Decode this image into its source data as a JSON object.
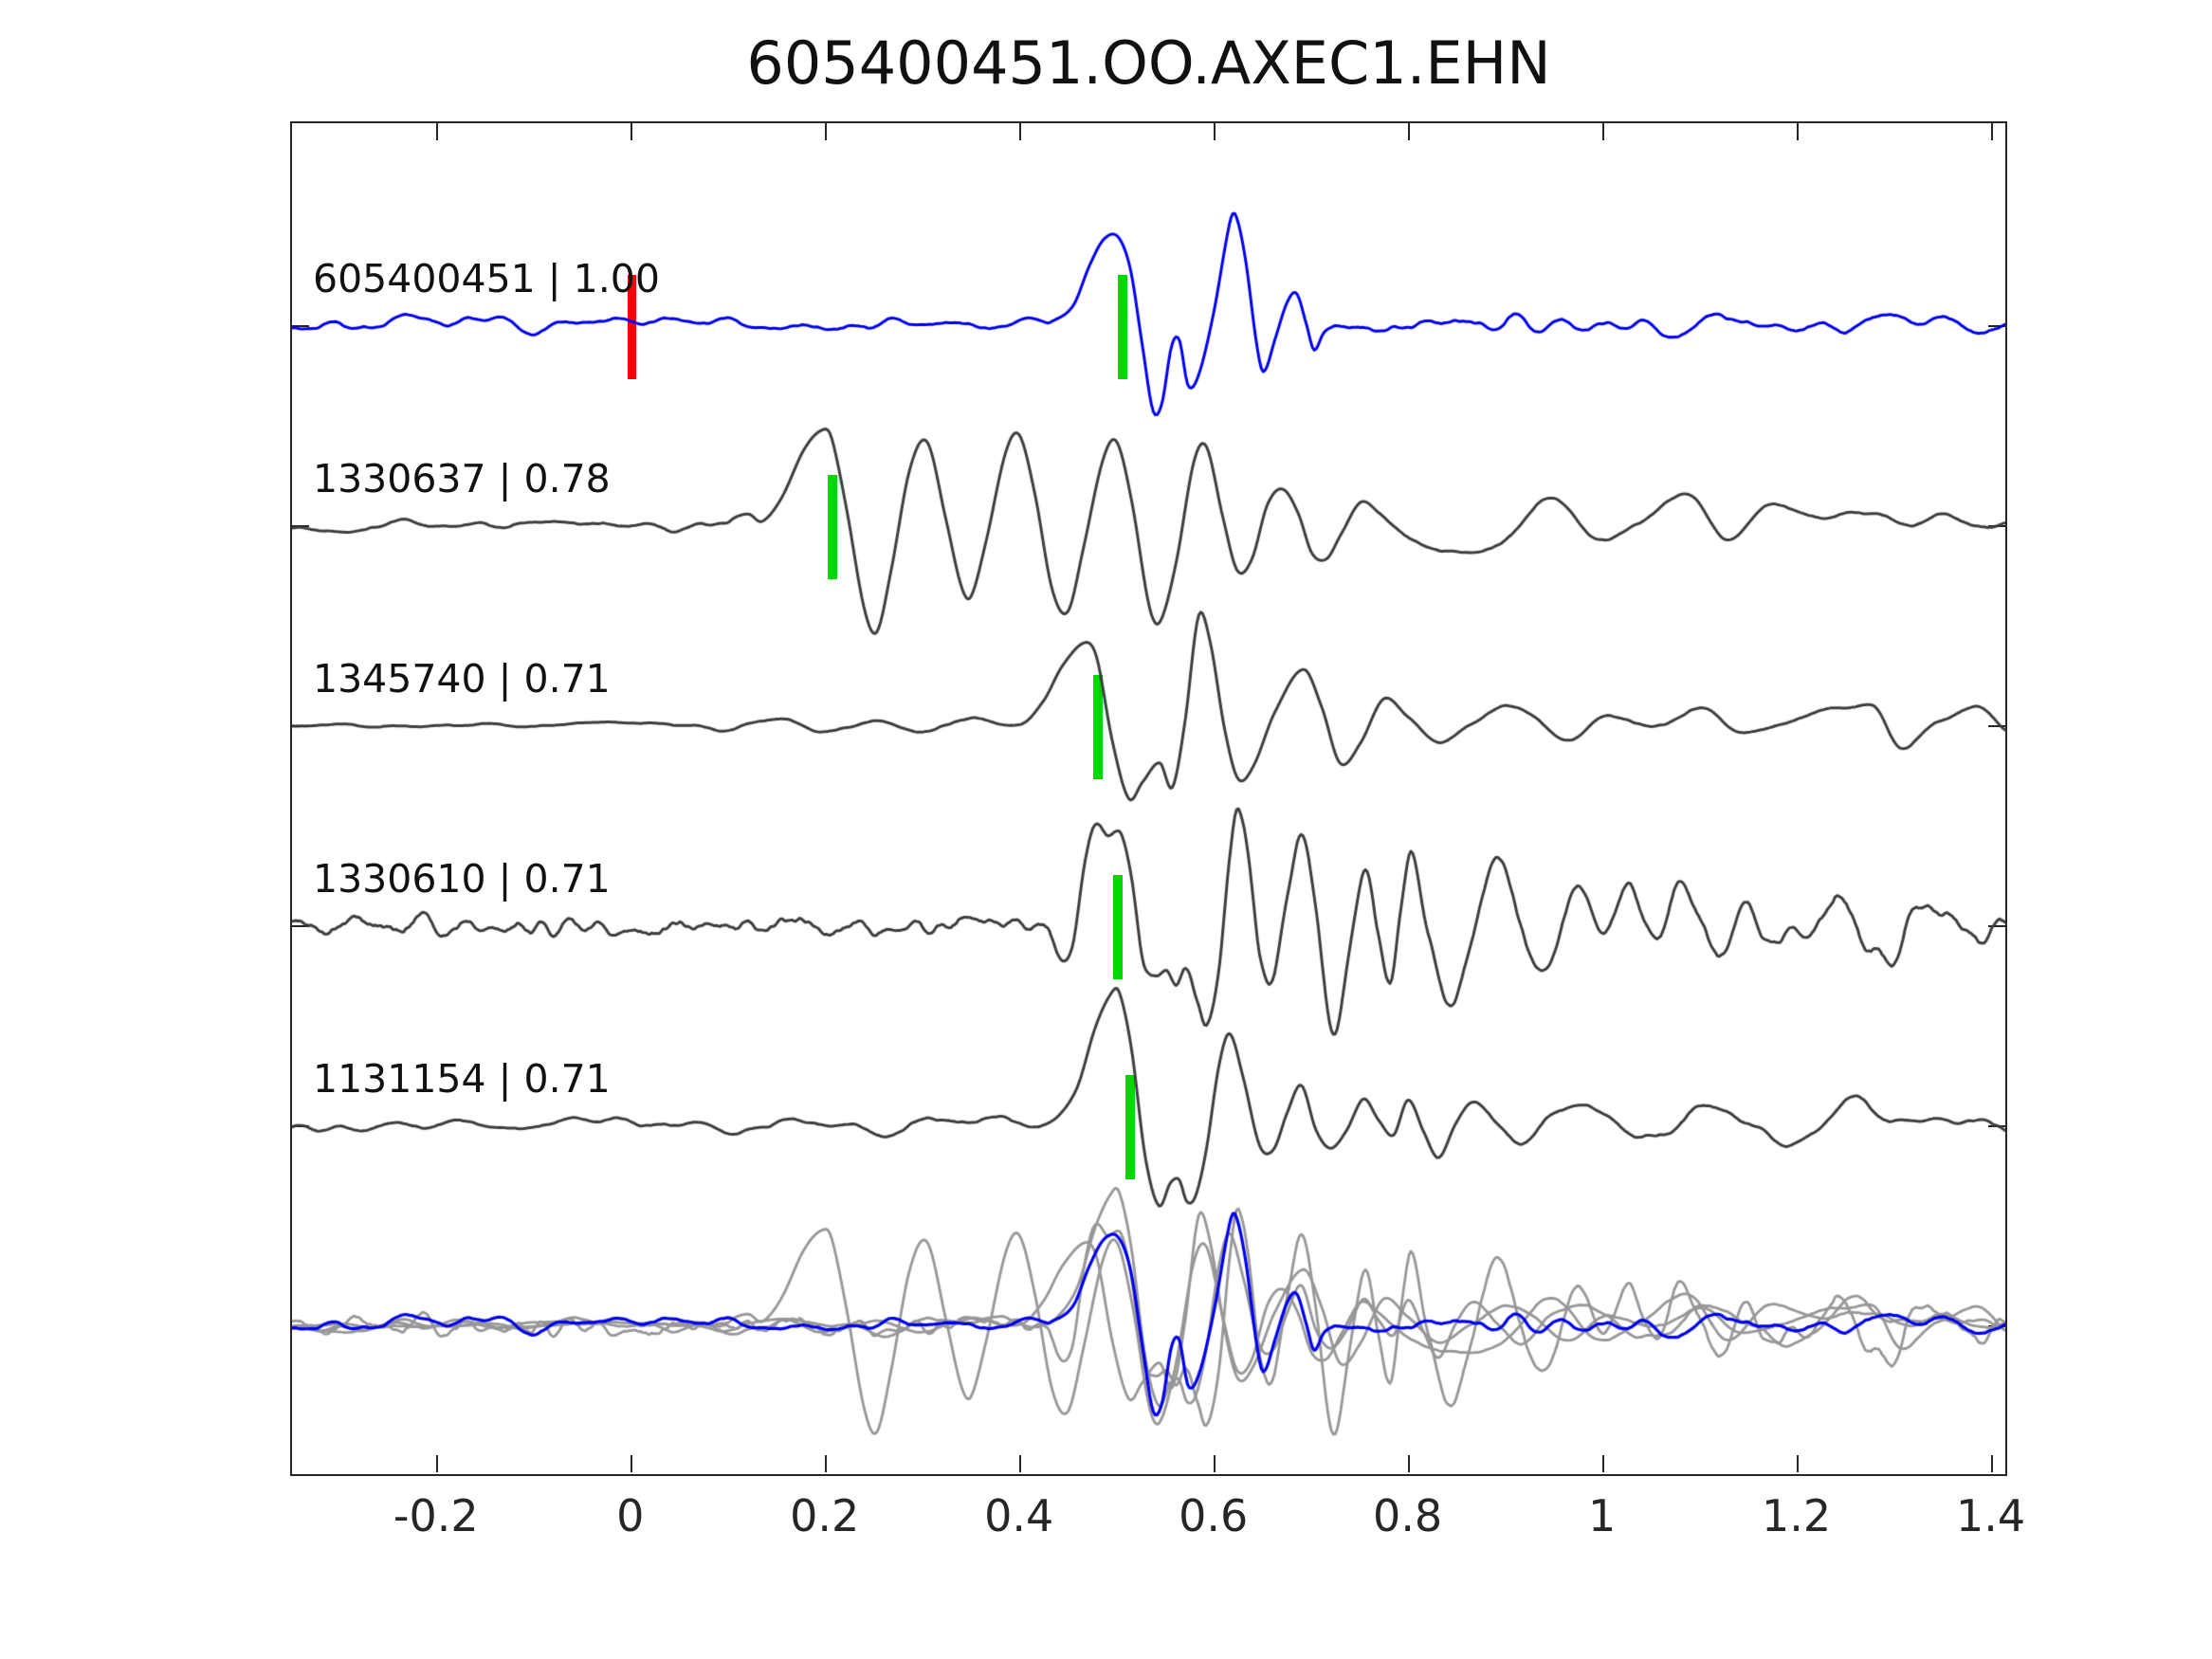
{
  "chart_data": {
    "type": "line",
    "title": "605400451.OO.AXEC1.EHN",
    "xlabel": "",
    "ylabel": "",
    "xlim": [
      -0.35,
      1.417
    ],
    "x_ticks": [
      -0.2,
      0,
      0.2,
      0.4,
      0.6,
      0.8,
      1,
      1.2,
      1.4
    ],
    "x_tick_labels": [
      "-0.2",
      "0",
      "0.2",
      "0.4",
      "0.6",
      "0.8",
      "1",
      "1.2",
      "1.4"
    ],
    "grid": false,
    "legend": "none",
    "colors": {
      "template_trace": "#0000ee",
      "detection_trace": "#3d3d3d",
      "overlay_gray": "#979797",
      "template_pick": "#ff0000",
      "detection_pick": "#00d800",
      "axis": "#262626",
      "text": "#111111"
    },
    "unit_spacing_units": 1.0,
    "traces": [
      {
        "id": "605400451",
        "correlation": 1.0,
        "label": "605400451 | 1.00",
        "role": "template",
        "color": "#0000ee",
        "offset_units": 5,
        "picks": [
          {
            "type": "template-origin",
            "time": 0.0,
            "color": "#ff0000",
            "width": 9
          },
          {
            "type": "detection-pick",
            "time": 0.505,
            "color": "#00d800",
            "width": 10
          }
        ],
        "noise": {
          "seed": 7,
          "smooth": 5,
          "envelope": [
            [
              -0.35,
              0.055
            ],
            [
              0.4,
              0.06
            ],
            [
              0.43,
              0.02
            ],
            [
              0.72,
              0.02
            ],
            [
              0.76,
              0.08
            ],
            [
              1.417,
              0.075
            ]
          ]
        },
        "event": [
          [
            0.43,
            0
          ],
          [
            0.455,
            0.1
          ],
          [
            0.472,
            0.3
          ],
          [
            0.488,
            0.43
          ],
          [
            0.503,
            0.44
          ],
          [
            0.515,
            0.28
          ],
          [
            0.527,
            -0.1
          ],
          [
            0.538,
            -0.42
          ],
          [
            0.547,
            -0.38
          ],
          [
            0.557,
            -0.1
          ],
          [
            0.565,
            -0.08
          ],
          [
            0.574,
            -0.32
          ],
          [
            0.584,
            -0.28
          ],
          [
            0.6,
            0.05
          ],
          [
            0.617,
            0.52
          ],
          [
            0.623,
            0.56
          ],
          [
            0.633,
            0.33
          ],
          [
            0.645,
            -0.12
          ],
          [
            0.652,
            -0.25
          ],
          [
            0.664,
            -0.08
          ],
          [
            0.676,
            0.1
          ],
          [
            0.686,
            0.15
          ],
          [
            0.696,
            0
          ],
          [
            0.704,
            -0.13
          ],
          [
            0.714,
            -0.04
          ],
          [
            0.725,
            0
          ]
        ]
      },
      {
        "id": "1330637",
        "correlation": 0.78,
        "label": "1330637 | 0.78",
        "role": "detection",
        "color": "#3d3d3d",
        "offset_units": 4,
        "picks": [
          {
            "type": "detection-pick",
            "time": 0.206,
            "color": "#00d800",
            "width": 10
          }
        ],
        "noise": {
          "seed": 13,
          "smooth": 6,
          "envelope": [
            [
              -0.35,
              0.035
            ],
            [
              0.1,
              0.045
            ],
            [
              0.14,
              0.01
            ],
            [
              0.76,
              0.01
            ],
            [
              0.8,
              0.045
            ],
            [
              1.417,
              0.045
            ]
          ]
        },
        "event": [
          [
            0.1,
            0
          ],
          [
            0.12,
            0.05
          ],
          [
            0.135,
            0.02
          ],
          [
            0.155,
            0.14
          ],
          [
            0.178,
            0.38
          ],
          [
            0.196,
            0.48
          ],
          [
            0.206,
            0.45
          ],
          [
            0.222,
            0.08
          ],
          [
            0.24,
            -0.42
          ],
          [
            0.253,
            -0.54
          ],
          [
            0.268,
            -0.22
          ],
          [
            0.287,
            0.28
          ],
          [
            0.305,
            0.42
          ],
          [
            0.324,
            0.04
          ],
          [
            0.34,
            -0.3
          ],
          [
            0.35,
            -0.36
          ],
          [
            0.366,
            -0.08
          ],
          [
            0.386,
            0.36
          ],
          [
            0.4,
            0.45
          ],
          [
            0.416,
            0.16
          ],
          [
            0.434,
            -0.32
          ],
          [
            0.45,
            -0.43
          ],
          [
            0.466,
            -0.12
          ],
          [
            0.486,
            0.32
          ],
          [
            0.5,
            0.42
          ],
          [
            0.516,
            0.12
          ],
          [
            0.534,
            -0.4
          ],
          [
            0.545,
            -0.48
          ],
          [
            0.562,
            -0.18
          ],
          [
            0.58,
            0.32
          ],
          [
            0.593,
            0.4
          ],
          [
            0.61,
            0.04
          ],
          [
            0.625,
            -0.23
          ],
          [
            0.64,
            -0.17
          ],
          [
            0.656,
            0.1
          ],
          [
            0.672,
            0.18
          ],
          [
            0.688,
            0.06
          ],
          [
            0.702,
            -0.14
          ],
          [
            0.717,
            -0.17
          ],
          [
            0.732,
            -0.04
          ],
          [
            0.752,
            0.12
          ],
          [
            0.772,
            0.06
          ],
          [
            0.8,
            -0.08
          ],
          [
            0.82,
            -0.12
          ],
          [
            0.885,
            -0.14
          ],
          [
            0.92,
            0
          ],
          [
            0.955,
            0.12
          ],
          [
            0.99,
            -0.05
          ],
          [
            1.04,
            0.02
          ],
          [
            1.09,
            0.13
          ],
          [
            1.13,
            -0.07
          ],
          [
            1.17,
            0.1
          ],
          [
            1.22,
            0.04
          ],
          [
            1.27,
            0.07
          ],
          [
            1.32,
            0.01
          ],
          [
            1.36,
            0.06
          ],
          [
            1.4,
            -0.02
          ],
          [
            1.417,
            -0.01
          ]
        ]
      },
      {
        "id": "1345740",
        "correlation": 0.71,
        "label": "1345740 | 0.71",
        "role": "detection",
        "color": "#3d3d3d",
        "offset_units": 3,
        "picks": [
          {
            "type": "detection-pick",
            "time": 0.479,
            "color": "#00d800",
            "width": 10
          }
        ],
        "noise": {
          "seed": 21,
          "smooth": 6,
          "envelope": [
            [
              -0.35,
              0.022
            ],
            [
              0.08,
              0.03
            ],
            [
              0.4,
              0.035
            ],
            [
              0.425,
              0.008
            ],
            [
              0.8,
              0.008
            ],
            [
              0.84,
              0.045
            ],
            [
              1.417,
              0.045
            ]
          ]
        },
        "event": [
          [
            0.1,
            0
          ],
          [
            0.15,
            0.02
          ],
          [
            0.2,
            -0.02
          ],
          [
            0.25,
            0.03
          ],
          [
            0.3,
            -0.02
          ],
          [
            0.35,
            0.03
          ],
          [
            0.4,
            0
          ],
          [
            0.425,
            0.12
          ],
          [
            0.445,
            0.3
          ],
          [
            0.468,
            0.42
          ],
          [
            0.48,
            0.34
          ],
          [
            0.496,
            -0.08
          ],
          [
            0.513,
            -0.37
          ],
          [
            0.527,
            -0.29
          ],
          [
            0.545,
            -0.19
          ],
          [
            0.558,
            -0.31
          ],
          [
            0.571,
            0.02
          ],
          [
            0.585,
            0.55
          ],
          [
            0.597,
            0.42
          ],
          [
            0.612,
            -0.02
          ],
          [
            0.626,
            -0.27
          ],
          [
            0.642,
            -0.2
          ],
          [
            0.663,
            0.06
          ],
          [
            0.693,
            0.28
          ],
          [
            0.712,
            0.09
          ],
          [
            0.731,
            -0.19
          ],
          [
            0.752,
            -0.09
          ],
          [
            0.776,
            0.13
          ],
          [
            0.8,
            0.04
          ],
          [
            0.83,
            -0.08
          ],
          [
            0.862,
            0.02
          ],
          [
            0.9,
            0.1
          ],
          [
            0.935,
            0.01
          ],
          [
            0.97,
            -0.06
          ],
          [
            1.005,
            0.04
          ],
          [
            1.05,
            -0.01
          ],
          [
            1.1,
            0.08
          ],
          [
            1.15,
            -0.05
          ],
          [
            1.21,
            0.03
          ],
          [
            1.28,
            0.09
          ],
          [
            1.31,
            -0.11
          ],
          [
            1.35,
            0.02
          ],
          [
            1.39,
            0.09
          ],
          [
            1.417,
            -0.04
          ]
        ]
      },
      {
        "id": "1330610",
        "correlation": 0.71,
        "label": "1330610 | 0.71",
        "role": "detection",
        "color": "#3d3d3d",
        "offset_units": 2,
        "picks": [
          {
            "type": "detection-pick",
            "time": 0.5,
            "color": "#00d800",
            "width": 10
          }
        ],
        "noise": {
          "seed": 5,
          "smooth": 3,
          "envelope": [
            [
              -0.35,
              0.11
            ],
            [
              0.41,
              0.11
            ],
            [
              0.44,
              0.07
            ],
            [
              1.0,
              0.09
            ],
            [
              1.05,
              0.13
            ],
            [
              1.417,
              0.13
            ]
          ]
        },
        "event": [
          [
            0.43,
            0
          ],
          [
            0.443,
            -0.16
          ],
          [
            0.455,
            -0.04
          ],
          [
            0.466,
            0.26
          ],
          [
            0.478,
            0.46
          ],
          [
            0.49,
            0.47
          ],
          [
            0.504,
            0.48
          ],
          [
            0.516,
            0.22
          ],
          [
            0.528,
            -0.2
          ],
          [
            0.54,
            -0.28
          ],
          [
            0.552,
            -0.23
          ],
          [
            0.562,
            -0.3
          ],
          [
            0.572,
            -0.22
          ],
          [
            0.584,
            -0.38
          ],
          [
            0.594,
            -0.52
          ],
          [
            0.606,
            -0.28
          ],
          [
            0.617,
            0.28
          ],
          [
            0.625,
            0.56
          ],
          [
            0.636,
            0.38
          ],
          [
            0.648,
            -0.12
          ],
          [
            0.661,
            -0.26
          ],
          [
            0.676,
            0.16
          ],
          [
            0.691,
            0.49
          ],
          [
            0.706,
            0.08
          ],
          [
            0.719,
            -0.44
          ],
          [
            0.727,
            -0.51
          ],
          [
            0.741,
            -0.13
          ],
          [
            0.757,
            0.31
          ],
          [
            0.77,
            -0.02
          ],
          [
            0.783,
            -0.29
          ],
          [
            0.794,
            0.08
          ],
          [
            0.805,
            0.36
          ],
          [
            0.822,
            -0.02
          ],
          [
            0.843,
            -0.43
          ],
          [
            0.861,
            -0.18
          ],
          [
            0.878,
            0.2
          ],
          [
            0.898,
            0.37
          ],
          [
            0.915,
            0.03
          ],
          [
            0.931,
            -0.2
          ],
          [
            0.948,
            -0.16
          ],
          [
            0.966,
            0.1
          ],
          [
            0.985,
            0.16
          ],
          [
            1.005,
            -0.05
          ],
          [
            1.03,
            0.18
          ],
          [
            1.055,
            -0.12
          ],
          [
            1.08,
            0.2
          ],
          [
            1.115,
            -0.1
          ],
          [
            1.15,
            0.15
          ],
          [
            1.19,
            -0.12
          ],
          [
            1.24,
            0.1
          ],
          [
            1.29,
            -0.1
          ],
          [
            1.34,
            0.12
          ],
          [
            1.39,
            -0.05
          ],
          [
            1.417,
            0.05
          ]
        ]
      },
      {
        "id": "1131154",
        "correlation": 0.71,
        "label": "1131154 | 0.71",
        "role": "detection",
        "color": "#3d3d3d",
        "offset_units": 1,
        "picks": [
          {
            "type": "detection-pick",
            "time": 0.513,
            "color": "#00d800",
            "width": 10
          }
        ],
        "noise": {
          "seed": 29,
          "smooth": 6,
          "envelope": [
            [
              -0.35,
              0.05
            ],
            [
              0.39,
              0.06
            ],
            [
              0.42,
              0.015
            ],
            [
              0.82,
              0.015
            ],
            [
              0.86,
              0.07
            ],
            [
              1.417,
              0.07
            ]
          ]
        },
        "event": [
          [
            0.42,
            0
          ],
          [
            0.44,
            0.06
          ],
          [
            0.46,
            0.2
          ],
          [
            0.478,
            0.48
          ],
          [
            0.494,
            0.65
          ],
          [
            0.503,
            0.67
          ],
          [
            0.516,
            0.38
          ],
          [
            0.53,
            -0.16
          ],
          [
            0.544,
            -0.41
          ],
          [
            0.556,
            -0.29
          ],
          [
            0.565,
            -0.27
          ],
          [
            0.573,
            -0.38
          ],
          [
            0.582,
            -0.35
          ],
          [
            0.593,
            -0.12
          ],
          [
            0.606,
            0.3
          ],
          [
            0.617,
            0.46
          ],
          [
            0.631,
            0.24
          ],
          [
            0.648,
            -0.1
          ],
          [
            0.662,
            -0.12
          ],
          [
            0.676,
            0.06
          ],
          [
            0.691,
            0.2
          ],
          [
            0.706,
            -0.02
          ],
          [
            0.721,
            -0.11
          ],
          [
            0.737,
            -0.02
          ],
          [
            0.755,
            0.14
          ],
          [
            0.771,
            0.02
          ],
          [
            0.786,
            -0.05
          ],
          [
            0.801,
            0.13
          ],
          [
            0.817,
            -0.03
          ],
          [
            0.832,
            -0.16
          ],
          [
            0.851,
            0
          ],
          [
            0.871,
            0.1
          ],
          [
            0.893,
            0
          ],
          [
            0.921,
            -0.08
          ],
          [
            0.951,
            0.05
          ],
          [
            0.981,
            0.1
          ],
          [
            1.012,
            0
          ],
          [
            1.052,
            -0.06
          ],
          [
            1.1,
            0.06
          ],
          [
            1.15,
            0
          ],
          [
            1.2,
            -0.07
          ],
          [
            1.262,
            0.08
          ],
          [
            1.312,
            0
          ],
          [
            1.372,
            0.05
          ],
          [
            1.417,
            -0.02
          ]
        ]
      }
    ],
    "overlay": {
      "offset_units": 0,
      "description": "all detection traces overlaid in gray with template trace in blue",
      "gray_color": "#979797",
      "template_color": "#0000ee"
    }
  }
}
